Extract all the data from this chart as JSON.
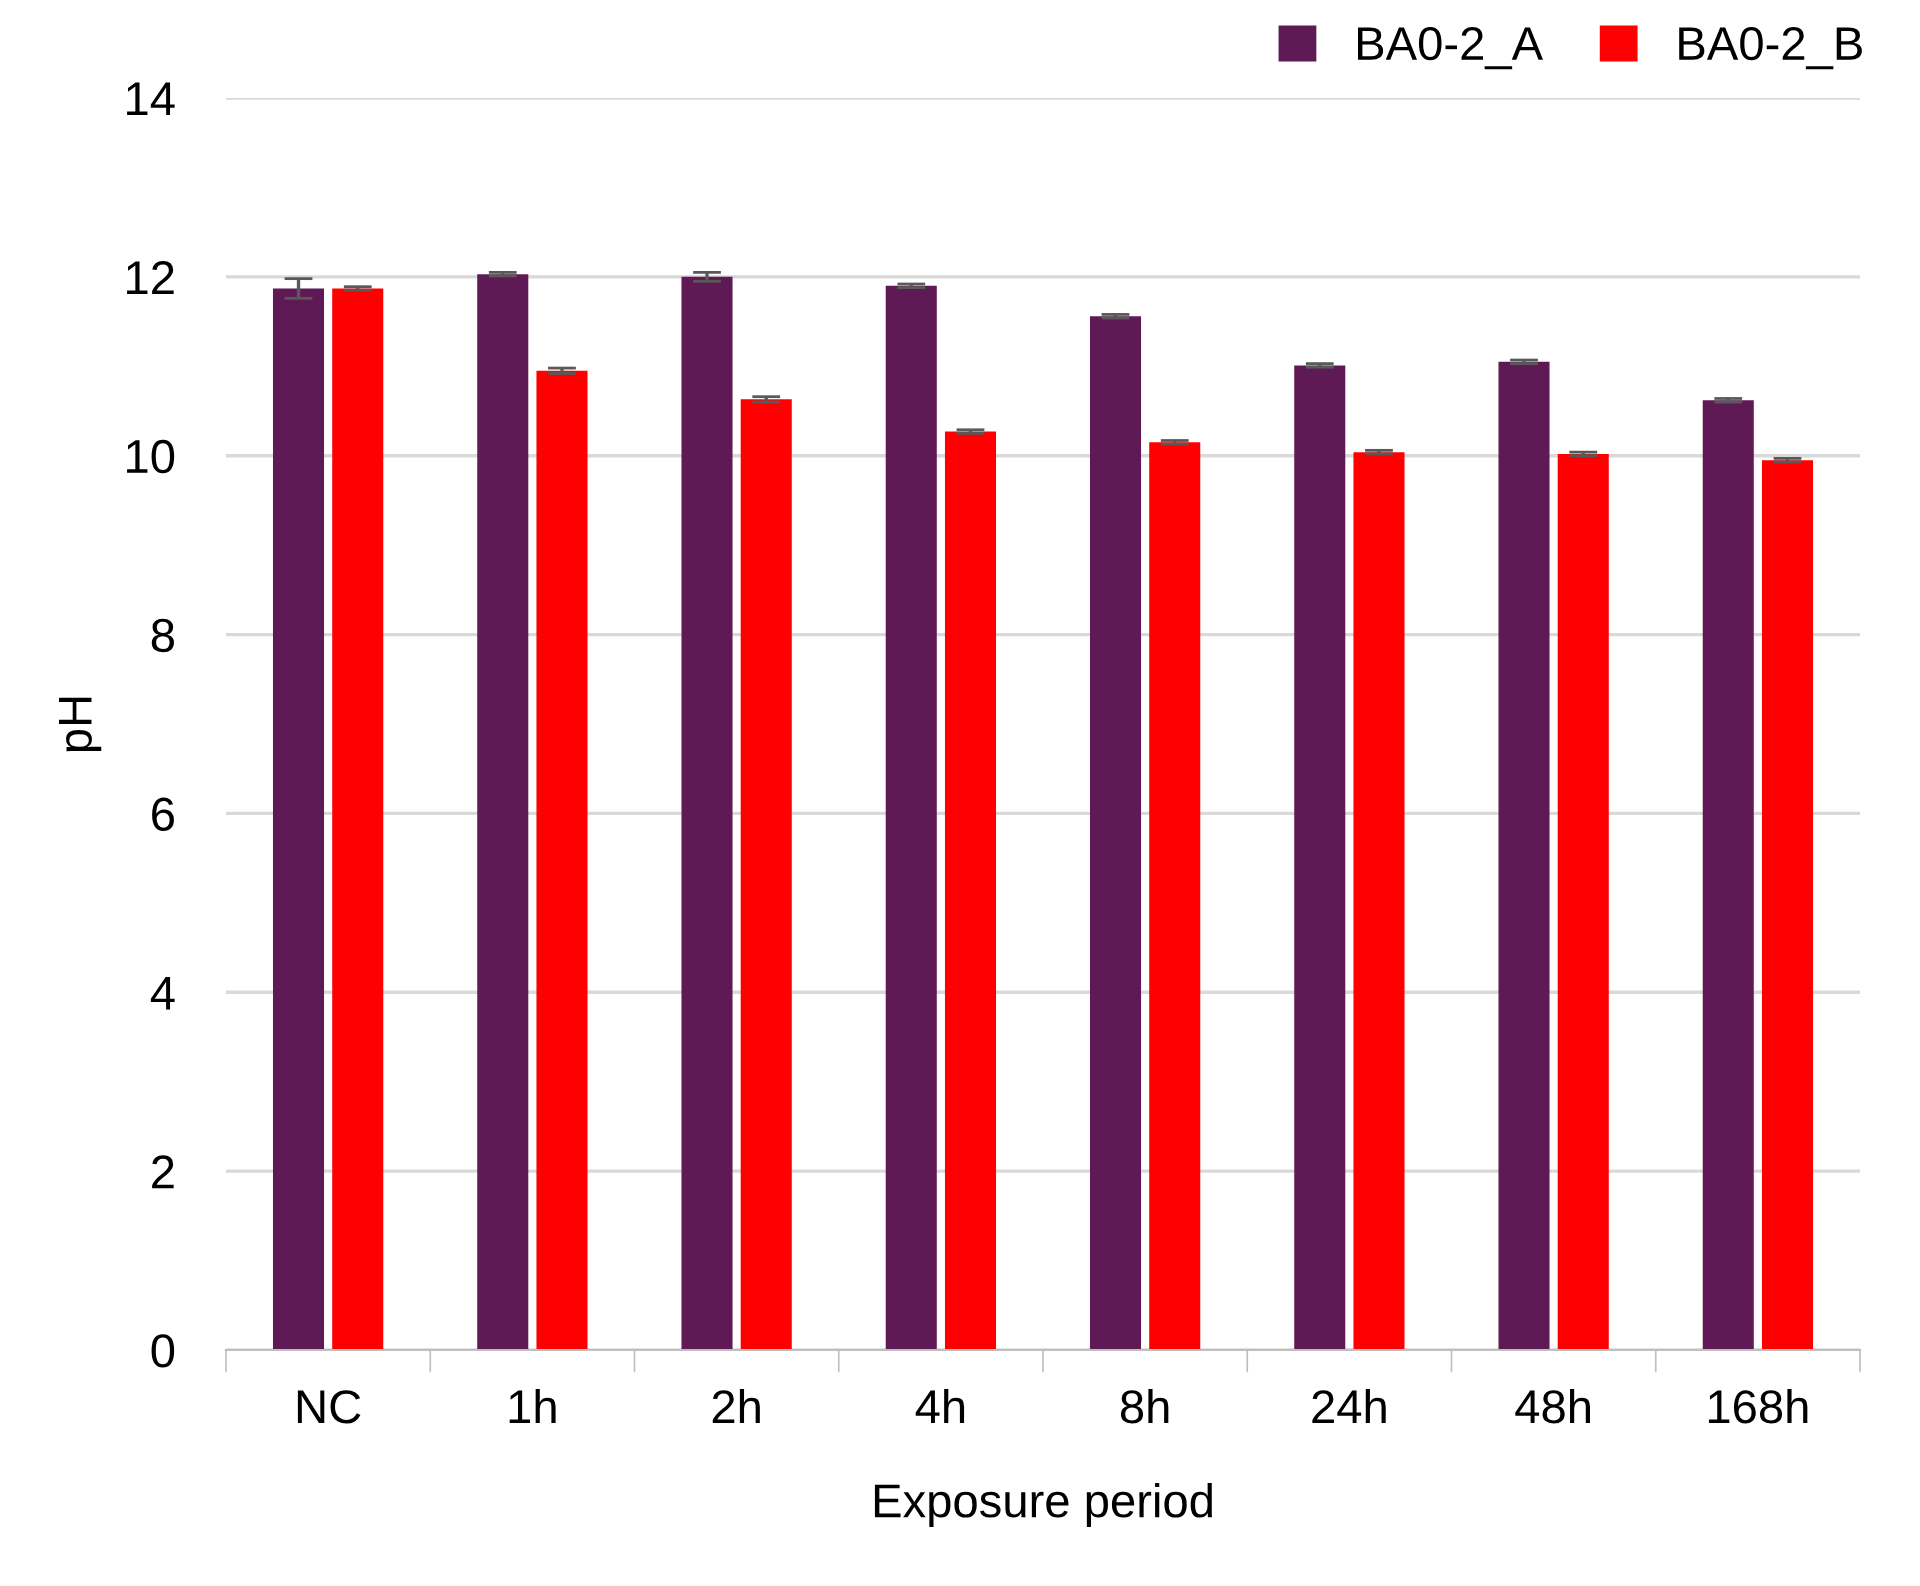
{
  "chart_data": {
    "type": "bar",
    "xlabel": "Exposure period",
    "ylabel": "pH",
    "categories": [
      "NC",
      "1h",
      "2h",
      "4h",
      "8h",
      "24h",
      "48h",
      "168h"
    ],
    "series": [
      {
        "name": "BA0-2_A",
        "color": "#5f1a55",
        "values": [
          11.87,
          12.03,
          12.0,
          11.9,
          11.56,
          11.01,
          11.05,
          10.62
        ],
        "errors": [
          0.11,
          0.02,
          0.05,
          0.02,
          0.02,
          0.02,
          0.02,
          0.02
        ]
      },
      {
        "name": "BA0-2_B",
        "color": "#ff0000",
        "values": [
          11.87,
          10.95,
          10.63,
          10.27,
          10.15,
          10.04,
          10.02,
          9.95
        ],
        "errors": [
          0.02,
          0.03,
          0.03,
          0.02,
          0.02,
          0.02,
          0.02,
          0.02
        ]
      }
    ],
    "ylim": [
      0,
      14
    ],
    "yticks": [
      0,
      2,
      4,
      6,
      8,
      10,
      12,
      14
    ],
    "grid": "y",
    "legend": "top right"
  }
}
